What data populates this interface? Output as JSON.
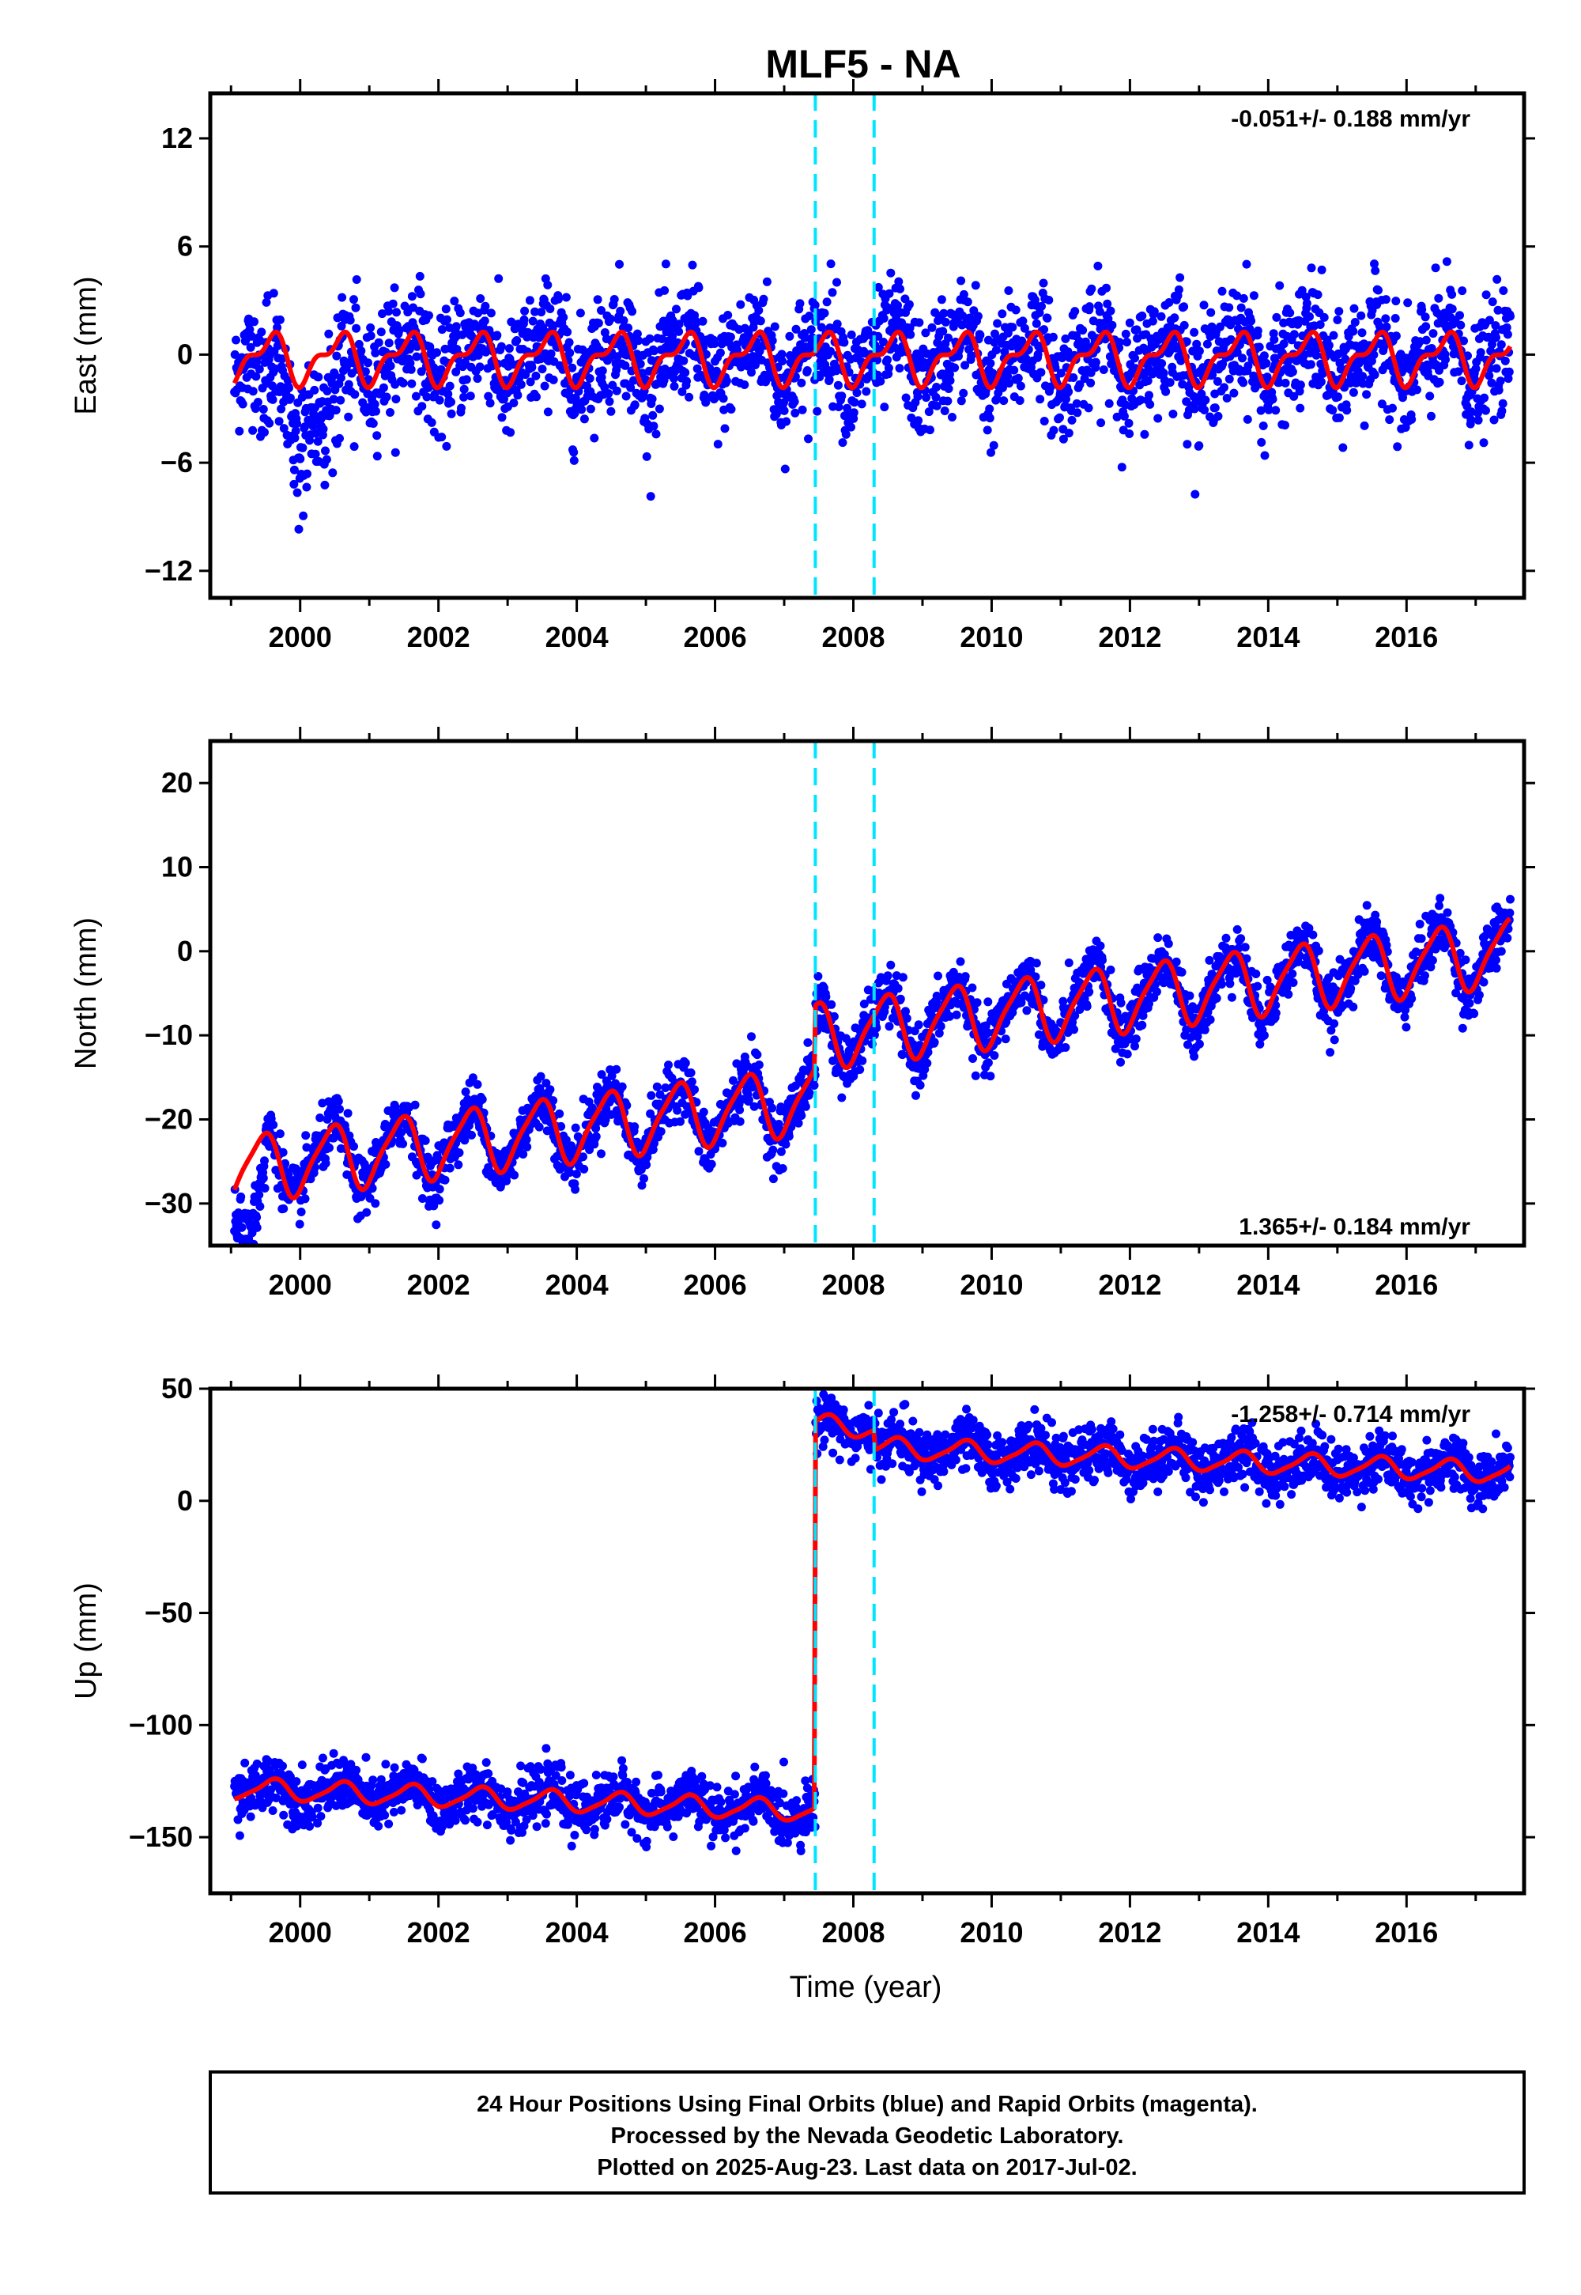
{
  "title": "MLF5 - NA",
  "xlabel": "Time (year)",
  "colors": {
    "data": "#0000ff",
    "model": "#ff0000",
    "offset_line": "#00e5ff",
    "frame": "#000000"
  },
  "footer": {
    "line1": "24 Hour Positions Using Final Orbits (blue) and Rapid Orbits (magenta).",
    "line2": "Processed by the Nevada Geodetic Laboratory.",
    "line3": "Plotted on 2025-Aug-23. Last data on 2017-Jul-02."
  },
  "chart_data": [
    {
      "type": "scatter",
      "component": "east",
      "ylabel": "East (mm)",
      "rate_label": "-0.051+/- 0.188 mm/yr",
      "rate_position": "top-right",
      "xlim": [
        1998.7,
        2017.7
      ],
      "ylim": [
        -13.5,
        14.5
      ],
      "yticks": [
        12,
        6,
        0,
        -6,
        -12
      ],
      "xticks": [
        2000,
        2002,
        2004,
        2006,
        2008,
        2010,
        2012,
        2014,
        2016
      ],
      "offset_lines": [
        2007.45,
        2008.3
      ],
      "data_range": [
        1999.05,
        2017.5
      ],
      "model": {
        "offset": -0.2,
        "trend_per_yr": 0.0,
        "steps": [],
        "annual_amp": 1.2,
        "annual_phase": 0.55,
        "semiannual_amp": 0.6,
        "semiannual_phase": 0.2
      },
      "scatter": {
        "sigma": 1.6,
        "anomaly": {
          "start": 1999.4,
          "end": 2000.8,
          "shift": -3.5
        }
      }
    },
    {
      "type": "scatter",
      "component": "north",
      "ylabel": "North (mm)",
      "rate_label": "1.365+/- 0.184 mm/yr",
      "rate_position": "bottom-right",
      "xlim": [
        1998.7,
        2017.7
      ],
      "ylim": [
        -35,
        25
      ],
      "yticks": [
        20,
        10,
        0,
        -10,
        -20,
        -30
      ],
      "xticks": [
        2000,
        2002,
        2004,
        2006,
        2008,
        2010,
        2012,
        2014,
        2016
      ],
      "offset_lines": [
        2007.45,
        2008.3
      ],
      "data_range": [
        1999.05,
        2017.5
      ],
      "model": {
        "offset": -17,
        "trend_per_yr": 1.0,
        "steps": [
          {
            "t": 2007.45,
            "size": 7.5
          }
        ],
        "annual_amp": 3.8,
        "annual_phase": 0.45,
        "semiannual_amp": 0.8,
        "semiannual_phase": 0.1
      },
      "scatter": {
        "sigma": 1.7,
        "anomaly": {
          "start": 1999.05,
          "end": 1999.5,
          "shift": -9
        }
      }
    },
    {
      "type": "scatter",
      "component": "up",
      "ylabel": "Up (mm)",
      "rate_label": "-1.258+/- 0.714 mm/yr",
      "rate_position": "top-right",
      "xlim": [
        1998.7,
        2017.7
      ],
      "ylim": [
        -175,
        50
      ],
      "yticks": [
        50,
        0,
        -50,
        -100,
        -150
      ],
      "xticks": [
        2000,
        2002,
        2004,
        2006,
        2008,
        2010,
        2012,
        2014,
        2016
      ],
      "offset_lines": [
        2007.45,
        2008.3
      ],
      "data_range": [
        1999.05,
        2017.5
      ],
      "model": {
        "offset": -139,
        "trend_per_yr": -1.2,
        "steps": [
          {
            "t": 2007.45,
            "size": 172
          },
          {
            "t": 2008.3,
            "size": -9
          }
        ],
        "annual_amp": 4.5,
        "annual_phase": 0.6,
        "semiannual_amp": 1.0,
        "semiannual_phase": 0.2
      },
      "scatter": {
        "sigma": 6.0,
        "anomaly": null
      }
    }
  ]
}
